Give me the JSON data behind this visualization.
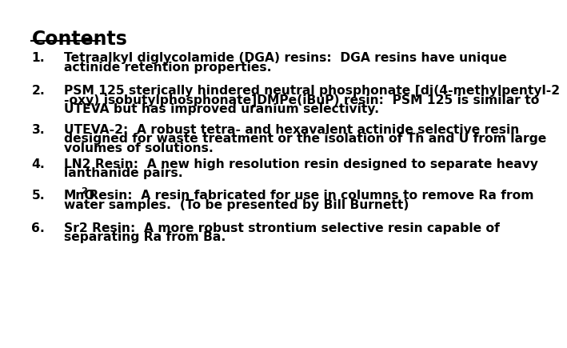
{
  "title": "Contents",
  "background_color": "#ffffff",
  "text_color": "#000000",
  "items": [
    {
      "number": "1.",
      "lines": [
        "Tetraalkyl diglycolamide (DGA) resins:  DGA resins have unique",
        "actinide retention properties."
      ],
      "special": false
    },
    {
      "number": "2.",
      "lines": [
        "PSM 125 sterically hindered neutral phosphonate [di(4-methylpentyl-2",
        "-oxy) isobutylphosphonate]DMPe(iBuP) resin:  PSM 125 is similar to",
        "UTEVA but has improved uranium selectivity."
      ],
      "special": false
    },
    {
      "number": "3.",
      "lines": [
        "UTEVA-2:  A robust tetra- and hexavalent actinide selective resin",
        "designed for waste treatment or the isolation of Th and U from large",
        "volumes of solutions."
      ],
      "special": false
    },
    {
      "number": "4.",
      "lines": [
        "LN2 Resin:  A new high resolution resin designed to separate heavy",
        "lanthanide pairs."
      ],
      "special": false
    },
    {
      "number": "5.",
      "lines": [
        " Resin:  A resin fabricated for use in columns to remove Ra from",
        "water samples.  (To be presented by Bill Burnett)"
      ],
      "special": true,
      "prefix": "MnO",
      "subscript": "2"
    },
    {
      "number": "6.",
      "lines": [
        "Sr2 Resin:  A more robust strontium selective resin capable of",
        "separating Ra from Ba."
      ],
      "special": false
    }
  ]
}
